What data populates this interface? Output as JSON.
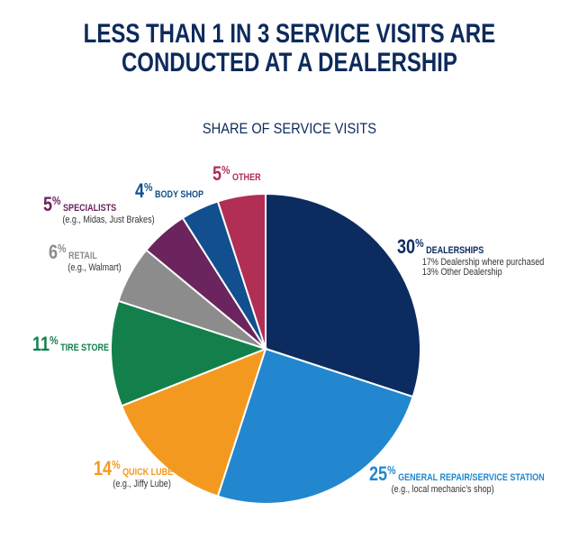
{
  "title": {
    "line1": "LESS THAN 1 IN 3 SERVICE VISITS ARE",
    "line2": "CONDUCTED AT A DEALERSHIP"
  },
  "chart_data": {
    "type": "pie",
    "title": "LESS THAN 1 IN 3 SERVICE VISITS ARE CONDUCTED AT A DEALERSHIP",
    "subtitle": "SHARE OF SERVICE VISITS",
    "unit": "%",
    "slices": [
      {
        "value": 30,
        "name": "DEALERSHIPS",
        "notes": [
          "17% Dealership where purchased",
          "13% Other Dealership"
        ],
        "color": "#0c2c60"
      },
      {
        "value": 25,
        "name": "GENERAL REPAIR/SERVICE STATION",
        "notes": [
          "(e.g., local mechanic's shop)"
        ],
        "color": "#2287cf"
      },
      {
        "value": 14,
        "name": "QUICK LUBE",
        "notes": [
          "(e.g., Jiffy Lube)"
        ],
        "color": "#f4991f"
      },
      {
        "value": 11,
        "name": "TIRE STORE",
        "notes": [],
        "color": "#13804c"
      },
      {
        "value": 6,
        "name": "RETAIL",
        "notes": [
          "(e.g., Walmart)"
        ],
        "color": "#8c8c8c"
      },
      {
        "value": 5,
        "name": "SPECIALISTS",
        "notes": [
          "(e.g., Midas, Just Brakes)"
        ],
        "color": "#6b245e"
      },
      {
        "value": 4,
        "name": "BODY SHOP",
        "notes": [],
        "color": "#114f8e"
      },
      {
        "value": 5,
        "name": "OTHER",
        "notes": [],
        "color": "#b12e55"
      }
    ]
  }
}
